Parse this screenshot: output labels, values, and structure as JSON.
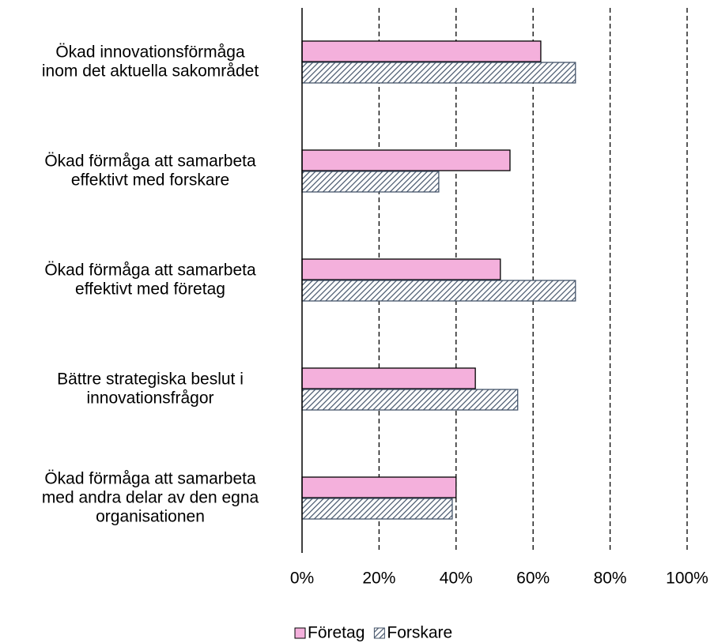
{
  "chart_data": {
    "type": "bar",
    "orientation": "horizontal",
    "categories": [
      [
        "Ökad innovationsförmåga",
        "inom det aktuella sakområdet"
      ],
      [
        "Ökad förmåga att samarbeta",
        "effektivt med forskare"
      ],
      [
        "Ökad förmåga att samarbeta",
        "effektivt med företag"
      ],
      [
        "Bättre strategiska beslut i",
        "innovationsfrågor"
      ],
      [
        "Ökad förmåga att samarbeta",
        "med andra delar av den egna",
        "organisationen"
      ]
    ],
    "series": [
      {
        "name": "Företag",
        "color": "#f4b0dc",
        "values": [
          62,
          54,
          51.5,
          45,
          40
        ]
      },
      {
        "name": "Forskare",
        "color": "#44546a",
        "pattern": "hatch",
        "values": [
          71,
          35.5,
          71,
          56,
          39
        ]
      }
    ],
    "xlim": [
      0,
      100
    ],
    "xticks": [
      {
        "value": 0,
        "label": "0%"
      },
      {
        "value": 20,
        "label": "20%"
      },
      {
        "value": 40,
        "label": "40%"
      },
      {
        "value": 60,
        "label": "60%"
      },
      {
        "value": 80,
        "label": "80%"
      },
      {
        "value": 100,
        "label": "100%"
      }
    ],
    "grid": true,
    "grid_style": "dashed",
    "legend": "bottom"
  }
}
